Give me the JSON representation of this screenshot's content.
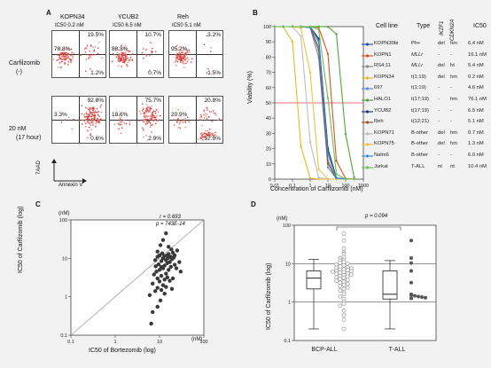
{
  "panels": {
    "a": {
      "label": "A",
      "columns": [
        {
          "name": "KOPN34",
          "ic50": "IC50  0.2 nM"
        },
        {
          "name": "YCUB2",
          "ic50": "IC50  6.5 nM"
        },
        {
          "name": "Reh",
          "ic50": "IC50  5.1 nM"
        }
      ],
      "rows": [
        {
          "label1": "Carfilzomib",
          "label2": "(-)",
          "quads": [
            {
              "ul": "78.8%",
              "ur": "19.5%",
              "lr": "1.2%"
            },
            {
              "ul": "88.3%",
              "ur": "10.7%",
              "lr": "0.7%"
            },
            {
              "ul": "95.2%",
              "ur": "3.2%",
              "lr": "1.5%"
            }
          ]
        },
        {
          "label1": "20 nM",
          "label2": "(17 hour)",
          "quads": [
            {
              "ul": "3.3%",
              "ur": "92.8%",
              "lr": "0.6%"
            },
            {
              "ul": "18.6%",
              "ur": "75.7%",
              "lr": "2.9%"
            },
            {
              "ul": "20.9%",
              "ur": "20.8%",
              "lr": "57.9%"
            }
          ]
        }
      ],
      "yaxis": "7AAD",
      "xaxis": "Annexin V"
    },
    "b": {
      "label": "B",
      "ylabel": "Viability (%)",
      "xlabel": "Concentration of Carfilzomib (nM)",
      "legend_headers": [
        "Cell line",
        "Type",
        "IKZF1",
        "CDKN2A",
        "IC50"
      ],
      "legend_rows": [
        {
          "name": "KOPN30bi",
          "type": "Ph+",
          "ikzf1": "del",
          "cdkn2a": "hm",
          "ic50": "6.4 nM",
          "color": "#2b55a8"
        },
        {
          "name": "KOPN1",
          "type": "MLLr",
          "ikzf1": "-",
          "cdkn2a": "-",
          "ic50": "16.1 nM",
          "color": "#d9531e"
        },
        {
          "name": "RS4;11",
          "type": "MLLr",
          "ikzf1": "del",
          "cdkn2a": "ht",
          "ic50": "5.4 nM",
          "color": "#8c8c8c"
        },
        {
          "name": "KOPN34",
          "type": "t(1;19)",
          "ikzf1": "del",
          "cdkn2a": "hm",
          "ic50": "0.2 nM",
          "color": "#e8b923"
        },
        {
          "name": "697",
          "type": "t(1;19)",
          "ikzf1": "-",
          "cdkn2a": "-",
          "ic50": "4.6 nM",
          "color": "#5b8fd6"
        },
        {
          "name": "HALO1",
          "type": "t(17;19)",
          "ikzf1": "-",
          "cdkn2a": "hm",
          "ic50": "76.1 nM",
          "color": "#4fa83a"
        },
        {
          "name": "YCUB2",
          "type": "t(17;19)",
          "ikzf1": "-",
          "cdkn2a": "-",
          "ic50": "6.5 nM",
          "color": "#1f3b70"
        },
        {
          "name": "Reh",
          "type": "t(12;21)",
          "ikzf1": "-",
          "cdkn2a": "-",
          "ic50": "5.1 nM",
          "color": "#a0522d"
        },
        {
          "name": "KOPN71",
          "type": "B-other",
          "ikzf1": "del",
          "cdkn2a": "hm",
          "ic50": "0.7 nM",
          "color": "#bdbdbd"
        },
        {
          "name": "KOPN75",
          "type": "B-other",
          "ikzf1": "del",
          "cdkn2a": "hm",
          "ic50": "1.3 nM",
          "color": "#f0c040"
        },
        {
          "name": "Nalm6",
          "type": "B-other",
          "ikzf1": "-",
          "cdkn2a": "-",
          "ic50": "6.0 nM",
          "color": "#3b8fd6"
        },
        {
          "name": "Jurkat",
          "type": "T-ALL",
          "ikzf1": "nt",
          "cdkn2a": "nt",
          "ic50": "10.4 nM",
          "color": "#6bbf59"
        }
      ]
    },
    "c": {
      "label": "C",
      "r_text": "r = 0.693",
      "p_text": "p = 743E-14",
      "unit_left": "(nM)",
      "unit_right": "(nM)",
      "ylabel": "IC50 of Carfilzomib (log)",
      "xlabel": "IC50 of Bortezomib (log)"
    },
    "d": {
      "label": "D",
      "unit": "(nM)",
      "p_text": "p = 0.094",
      "ylabel": "IC50 of Carfilzomib (log)"
    }
  },
  "chart_data": [
    {
      "type": "line",
      "title": "",
      "xlabel": "Concentration of Carfilzomib (nM)",
      "ylabel": "Viability (%)",
      "log_x": true,
      "xlim": [
        0.01,
        1000
      ],
      "ylim": [
        0,
        100
      ],
      "x_ticks": [
        "0.01",
        "0.1",
        "1",
        "10",
        "100",
        "1000"
      ],
      "y_ticks": [
        "0",
        "10",
        "20",
        "30",
        "40",
        "50",
        "60",
        "70",
        "80",
        "90",
        "100"
      ],
      "reference_line_y": 50,
      "series": [
        {
          "name": "KOPN30bi",
          "ic50": 6.4
        },
        {
          "name": "KOPN1",
          "ic50": 16.1
        },
        {
          "name": "RS4;11",
          "ic50": 5.4
        },
        {
          "name": "KOPN34",
          "ic50": 0.2
        },
        {
          "name": "697",
          "ic50": 4.6
        },
        {
          "name": "HALO1",
          "ic50": 76.1
        },
        {
          "name": "YCUB2",
          "ic50": 6.5
        },
        {
          "name": "Reh",
          "ic50": 5.1
        },
        {
          "name": "KOPN71",
          "ic50": 0.7
        },
        {
          "name": "KOPN75",
          "ic50": 1.3
        },
        {
          "name": "Nalm6",
          "ic50": 6.0
        },
        {
          "name": "Jurkat",
          "ic50": 10.4
        }
      ]
    },
    {
      "type": "scatter",
      "xlabel": "IC50 of Bortezomib (log)",
      "ylabel": "IC50 of Carfilzomib (log)",
      "log_x": true,
      "log_y": true,
      "xlim": [
        0.1,
        100
      ],
      "ylim": [
        0.1,
        100
      ],
      "x_ticks": [
        "0.1",
        "1",
        "10",
        "100"
      ],
      "y_ticks": [
        "0.1",
        "1",
        "10",
        "100"
      ],
      "points": [
        [
          10.5,
          22
        ],
        [
          12,
          30
        ],
        [
          14,
          45
        ],
        [
          8,
          9
        ],
        [
          9,
          11
        ],
        [
          10,
          12
        ],
        [
          11,
          8.5
        ],
        [
          12,
          10
        ],
        [
          13,
          11.5
        ],
        [
          14,
          9
        ],
        [
          15,
          12
        ],
        [
          16,
          13
        ],
        [
          18,
          11
        ],
        [
          20,
          14
        ],
        [
          22,
          12
        ],
        [
          9.5,
          7
        ],
        [
          11,
          6
        ],
        [
          13,
          6.5
        ],
        [
          15,
          7.5
        ],
        [
          17,
          8
        ],
        [
          19,
          9.5
        ],
        [
          21,
          10.5
        ],
        [
          25,
          16
        ],
        [
          8.5,
          4.5
        ],
        [
          10,
          5
        ],
        [
          12,
          5.5
        ],
        [
          14,
          4
        ],
        [
          16,
          5
        ],
        [
          18,
          6
        ],
        [
          9,
          3
        ],
        [
          11,
          3.5
        ],
        [
          13,
          2.8
        ],
        [
          15,
          3.2
        ],
        [
          7,
          2.2
        ],
        [
          10,
          2.5
        ],
        [
          12,
          2
        ],
        [
          8,
          1.4
        ],
        [
          11,
          1.5
        ],
        [
          14,
          1.8
        ],
        [
          6,
          1.1
        ],
        [
          9,
          1.7
        ],
        [
          13,
          1.2
        ],
        [
          7,
          0.4
        ],
        [
          9,
          0.55
        ],
        [
          10.5,
          0.8
        ],
        [
          6.5,
          0.2
        ],
        [
          28,
          8
        ],
        [
          24,
          5.5
        ],
        [
          30,
          4.5
        ],
        [
          20,
          3
        ],
        [
          17,
          2.6
        ],
        [
          19,
          1.6
        ],
        [
          7.5,
          3.8
        ],
        [
          16,
          20
        ],
        [
          22,
          6.8
        ],
        [
          11.5,
          13.5
        ],
        [
          9,
          15
        ],
        [
          15.5,
          10.2
        ],
        [
          8.2,
          6.2
        ],
        [
          18.5,
          17
        ]
      ]
    },
    {
      "type": "box",
      "ylabel": "IC50 of Carfilzomib (log)",
      "log_y": true,
      "ylim": [
        0.1,
        100
      ],
      "y_ticks": [
        "0.1",
        "1",
        "10",
        "100"
      ],
      "categories": [
        "BCP-ALL",
        "T-ALL"
      ],
      "boxes": [
        {
          "name": "BCP-ALL",
          "min": 0.2,
          "q1": 2.2,
          "median": 4.2,
          "q3": 6.5,
          "max": 13
        },
        {
          "name": "T-ALL",
          "min": 0.2,
          "q1": 1.2,
          "median": 1.6,
          "q3": 6.5,
          "max": 12
        }
      ],
      "points_bcp": [
        60,
        40,
        25,
        20,
        18,
        15,
        14,
        12.5,
        12,
        11,
        10.5,
        10,
        9.5,
        9,
        8.5,
        8,
        7.8,
        7.5,
        7.2,
        7,
        6.8,
        6.6,
        6.4,
        6.2,
        6,
        5.8,
        5.6,
        5.4,
        5.2,
        5,
        4.8,
        4.6,
        4.4,
        4.2,
        4,
        3.8,
        3.6,
        3.4,
        3.2,
        3,
        2.8,
        2.6,
        2.4,
        2.2,
        2,
        1.8,
        1.6,
        1.4,
        1.2,
        1,
        0.9,
        0.8,
        0.6,
        0.45,
        0.35,
        0.2
      ],
      "points_tall": [
        40,
        14,
        10.4,
        6.5,
        3.2,
        1.6,
        1.5,
        1.45,
        1.4,
        1.35,
        1.3,
        1.25
      ]
    }
  ]
}
